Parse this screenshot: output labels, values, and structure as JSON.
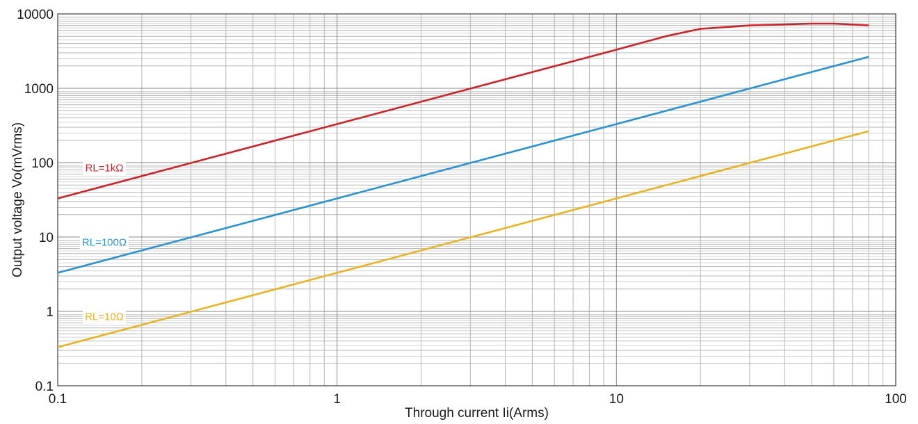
{
  "chart_data": {
    "type": "line",
    "xlabel": "Through current  Ii(Arms)",
    "ylabel": "Output voltage  Vo(mVrms)",
    "x_scale": "log",
    "y_scale": "log",
    "xlim": [
      0.1,
      100
    ],
    "ylim": [
      0.1,
      10000
    ],
    "x_ticks": [
      "0.1",
      "1",
      "10",
      "100"
    ],
    "y_ticks": [
      "0.1",
      "1",
      "10",
      "100",
      "1000",
      "10000"
    ],
    "grid": true,
    "colors": {
      "red": "#cc2229",
      "blue": "#2a93cf",
      "yellow": "#e8b424"
    },
    "series": [
      {
        "name": "RL=1kΩ",
        "color": "#cc2229",
        "points": [
          [
            0.1,
            33
          ],
          [
            1,
            330
          ],
          [
            10,
            3300
          ],
          [
            15,
            5000
          ],
          [
            20,
            6300
          ],
          [
            30,
            7000
          ],
          [
            50,
            7400
          ],
          [
            60,
            7400
          ],
          [
            70,
            7200
          ],
          [
            80,
            7000
          ]
        ]
      },
      {
        "name": "RL=100Ω",
        "color": "#2a93cf",
        "points": [
          [
            0.1,
            3.3
          ],
          [
            1,
            33
          ],
          [
            10,
            330
          ],
          [
            80,
            2650
          ]
        ]
      },
      {
        "name": "RL=10Ω",
        "color": "#e8b424",
        "points": [
          [
            0.1,
            0.33
          ],
          [
            1,
            3.3
          ],
          [
            10,
            33
          ],
          [
            80,
            265
          ]
        ]
      }
    ]
  }
}
